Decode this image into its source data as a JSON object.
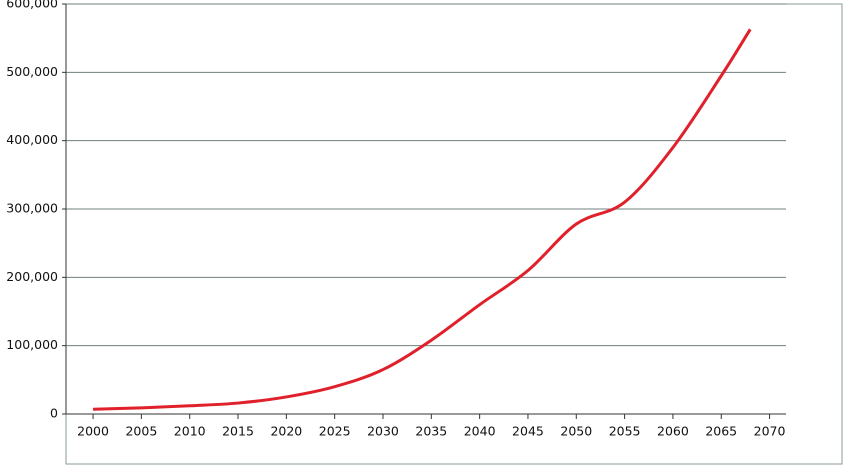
{
  "chart_data": {
    "type": "line",
    "x": [
      2000,
      2005,
      2010,
      2015,
      2020,
      2025,
      2030,
      2035,
      2040,
      2045,
      2050,
      2055,
      2060,
      2065,
      2068
    ],
    "series": [
      {
        "color": "#e0202a",
        "values": [
          7000,
          9000,
          12000,
          16000,
          25000,
          40000,
          65000,
          108000,
          160000,
          210000,
          278000,
          310000,
          390000,
          495000,
          563000
        ]
      }
    ],
    "xlim": [
      1997.2,
      2071.7
    ],
    "xticks": [
      2000,
      2005,
      2010,
      2015,
      2020,
      2025,
      2030,
      2035,
      2040,
      2045,
      2050,
      2055,
      2060,
      2065,
      2070
    ],
    "ylim": [
      0,
      600000
    ],
    "yticks": [
      0,
      {
        "value": 100000,
        "label": "100,000"
      },
      {
        "value": 200000,
        "label": "200,000"
      },
      {
        "value": 300000,
        "label": "300,000"
      },
      {
        "value": 400000,
        "label": "400,000"
      },
      {
        "value": 500000,
        "label": "500,000"
      },
      {
        "value": 600000,
        "label": "600,000"
      }
    ],
    "grid": true
  }
}
